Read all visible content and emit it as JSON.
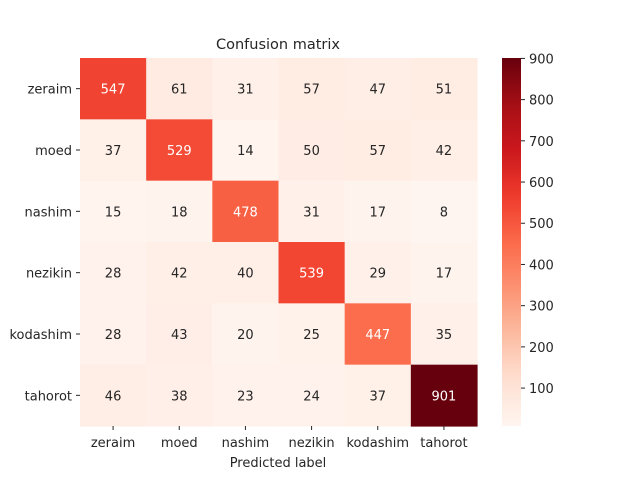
{
  "chart_data": {
    "type": "heatmap",
    "title": "Confusion matrix",
    "xlabel": "Predicted label",
    "ylabel": "",
    "x_categories": [
      "zeraim",
      "moed",
      "nashim",
      "nezikin",
      "kodashim",
      "tahorot"
    ],
    "y_categories": [
      "zeraim",
      "moed",
      "nashim",
      "nezikin",
      "kodashim",
      "tahorot"
    ],
    "values": [
      [
        547,
        61,
        31,
        57,
        47,
        51
      ],
      [
        37,
        529,
        14,
        50,
        57,
        42
      ],
      [
        15,
        18,
        478,
        31,
        17,
        8
      ],
      [
        28,
        42,
        40,
        539,
        29,
        17
      ],
      [
        28,
        43,
        20,
        25,
        447,
        35
      ],
      [
        46,
        38,
        23,
        24,
        37,
        901
      ]
    ],
    "colormap": "Reds",
    "colorbar": {
      "min": 8,
      "max": 901,
      "ticks": [
        100,
        200,
        300,
        400,
        500,
        600,
        700,
        800,
        900
      ]
    }
  }
}
